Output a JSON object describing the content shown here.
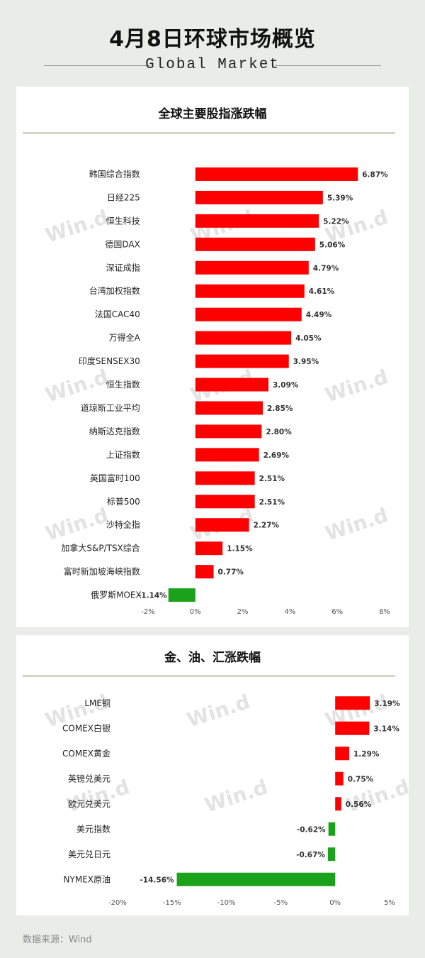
{
  "header": {
    "title": "4月8日环球市场概览",
    "subtitle": "Global Market"
  },
  "footer": {
    "source": "数据来源：Wind"
  },
  "watermark": "Win.d",
  "colors": {
    "positive": "#ff0000",
    "negative": "#1aa31a",
    "axis": "#555555"
  },
  "chart_data": [
    {
      "type": "bar",
      "orientation": "horizontal",
      "title": "全球主要股指涨跌幅",
      "categories": [
        "韩国综合指数",
        "日经225",
        "恒生科技",
        "德国DAX",
        "深证成指",
        "台湾加权指数",
        "法国CAC40",
        "万得全A",
        "印度SENSEX30",
        "恒生指数",
        "道琼斯工业平均",
        "纳斯达克指数",
        "上证指数",
        "英国富时100",
        "标普500",
        "沙特全指",
        "加拿大S&P/TSX综合",
        "富时新加坡海峡指数",
        "俄罗斯MOEX"
      ],
      "values": [
        6.87,
        5.39,
        5.22,
        5.06,
        4.79,
        4.61,
        4.49,
        4.05,
        3.95,
        3.09,
        2.85,
        2.8,
        2.69,
        2.51,
        2.51,
        2.27,
        1.15,
        0.77,
        -1.14
      ],
      "value_labels": [
        "6.87%",
        "5.39%",
        "5.22%",
        "5.06%",
        "4.79%",
        "4.61%",
        "4.49%",
        "4.05%",
        "3.95%",
        "3.09%",
        "2.85%",
        "2.80%",
        "2.69%",
        "2.51%",
        "2.51%",
        "2.27%",
        "1.15%",
        "0.77%",
        "-1.14%"
      ],
      "xlim": [
        -2,
        8
      ],
      "xticks": [
        -2,
        0,
        2,
        4,
        6,
        8
      ],
      "xtick_labels": [
        "-2%",
        "0%",
        "2%",
        "4%",
        "6%",
        "8%"
      ],
      "grid": false
    },
    {
      "type": "bar",
      "orientation": "horizontal",
      "title": "金、油、汇涨跌幅",
      "categories": [
        "LME铜",
        "COMEX白银",
        "COMEX黄金",
        "英镑兑美元",
        "欧元兑美元",
        "美元指数",
        "美元兑日元",
        "NYMEX原油"
      ],
      "values": [
        3.19,
        3.14,
        1.29,
        0.75,
        0.56,
        -0.62,
        -0.67,
        -14.56
      ],
      "value_labels": [
        "3.19%",
        "3.14%",
        "1.29%",
        "0.75%",
        "0.56%",
        "-0.62%",
        "-0.67%",
        "-14.56%"
      ],
      "xlim": [
        -20,
        5
      ],
      "xticks": [
        -20,
        -15,
        -10,
        -5,
        0,
        5
      ],
      "xtick_labels": [
        "-20%",
        "-15%",
        "-10%",
        "-5%",
        "0%",
        "5%"
      ],
      "grid": false
    }
  ]
}
